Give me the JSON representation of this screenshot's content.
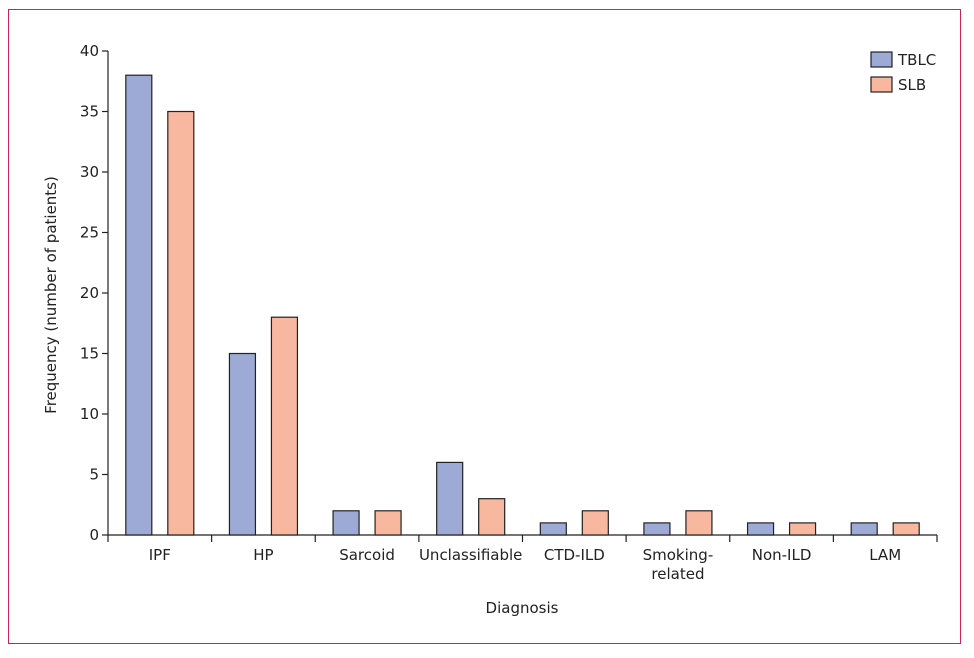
{
  "chart_data": {
    "type": "bar",
    "categories": [
      [
        "IPF"
      ],
      [
        "HP"
      ],
      [
        "Sarcoid"
      ],
      [
        "Unclassifiable"
      ],
      [
        "CTD-ILD"
      ],
      [
        "Smoking-",
        "related"
      ],
      [
        "Non-ILD"
      ],
      [
        "LAM"
      ]
    ],
    "series": [
      {
        "name": "TBLC",
        "color": "#9daad6",
        "values": [
          38,
          15,
          2,
          6,
          1,
          1,
          1,
          1
        ]
      },
      {
        "name": "SLB",
        "color": "#f8b8a0",
        "values": [
          35,
          18,
          2,
          3,
          2,
          2,
          1,
          1
        ]
      }
    ],
    "xlabel": "Diagnosis",
    "ylabel": "Frequency (number of patients)",
    "ylim": [
      0,
      40
    ],
    "yticks": [
      0,
      5,
      10,
      15,
      20,
      25,
      30,
      35,
      40
    ],
    "legend_position": "top-right",
    "grid": false,
    "frame_color": "#c8245a"
  }
}
